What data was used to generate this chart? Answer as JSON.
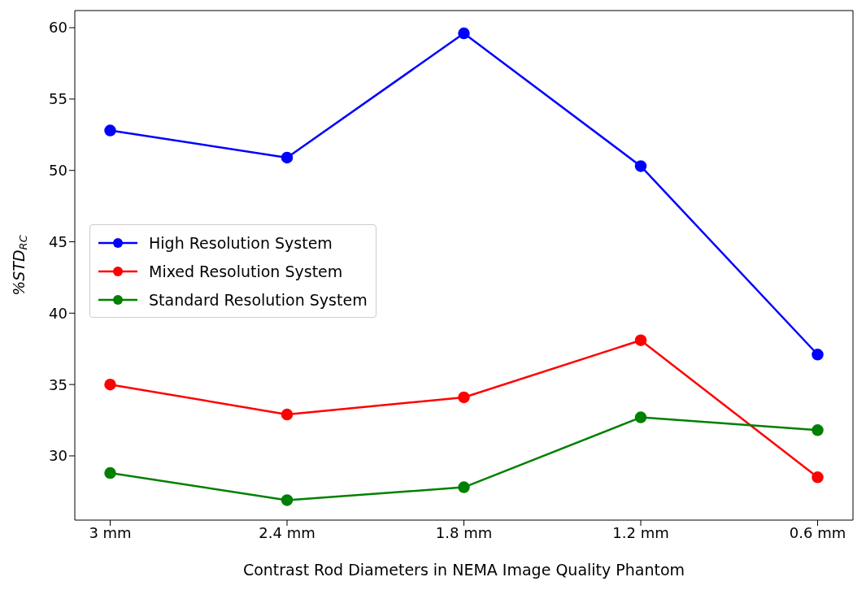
{
  "chart_data": {
    "type": "line",
    "xlabel": "Contrast Rod Diameters in NEMA Image Quality Phantom",
    "ylabel": "%STD$_{RC}$",
    "categories": [
      "3 mm",
      "2.4 mm",
      "1.8 mm",
      "1.2 mm",
      "0.6 mm"
    ],
    "series": [
      {
        "name": "High Resolution System",
        "color": "#0000ff",
        "values": [
          52.8,
          50.9,
          59.6,
          50.3,
          37.1
        ]
      },
      {
        "name": "Mixed Resolution System",
        "color": "#ff0000",
        "values": [
          35.0,
          32.9,
          34.1,
          38.1,
          28.5
        ]
      },
      {
        "name": "Standard Resolution System",
        "color": "#008000",
        "values": [
          28.8,
          26.9,
          27.8,
          32.7,
          31.8
        ]
      }
    ],
    "ylim": [
      25.5,
      61.2
    ],
    "yticks": [
      30,
      35,
      40,
      45,
      50,
      55,
      60
    ],
    "legend": "center left",
    "marker": "circle",
    "line_style": "solid"
  }
}
